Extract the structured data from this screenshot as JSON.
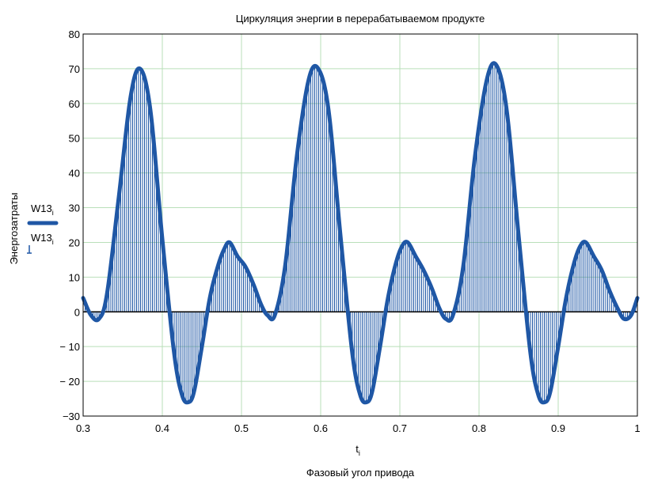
{
  "chart_data": {
    "type": "line",
    "title": "Циркуляция энергии в перерабатываемом продукте",
    "xlabel": "Фазовый угол привода",
    "ylabel": "Энергозатраты",
    "x_var_label": "t",
    "x_var_sub": "i",
    "xlim": [
      0.3,
      1.0
    ],
    "ylim": [
      -30,
      80
    ],
    "x_ticks": [
      0.3,
      0.4,
      0.5,
      0.6,
      0.7,
      0.8,
      0.9,
      1.0
    ],
    "x_tick_labels": [
      "0.3",
      "0.4",
      "0.5",
      "0.6",
      "0.7",
      "0.8",
      "0.9",
      "1"
    ],
    "y_ticks": [
      -30,
      -20,
      -10,
      0,
      10,
      20,
      30,
      40,
      50,
      60,
      70,
      80
    ],
    "y_tick_labels": [
      "−30",
      "− 20",
      "− 10",
      "0",
      "10",
      "20",
      "30",
      "40",
      "50",
      "60",
      "70",
      "80"
    ],
    "grid": true,
    "legend_position": "left",
    "series": [
      {
        "name": "W13",
        "name_sub": "i",
        "style": "line",
        "color": "#1f57a5",
        "x": [
          0.3,
          0.31,
          0.32,
          0.33,
          0.345,
          0.36,
          0.372,
          0.385,
          0.4,
          0.415,
          0.425,
          0.433,
          0.44,
          0.45,
          0.46,
          0.47,
          0.478,
          0.485,
          0.495,
          0.505,
          0.515,
          0.525,
          0.533,
          0.542,
          0.555,
          0.57,
          0.585,
          0.597,
          0.61,
          0.625,
          0.64,
          0.65,
          0.658,
          0.665,
          0.675,
          0.685,
          0.695,
          0.703,
          0.71,
          0.72,
          0.73,
          0.74,
          0.75,
          0.758,
          0.767,
          0.78,
          0.795,
          0.81,
          0.822,
          0.835,
          0.85,
          0.865,
          0.875,
          0.883,
          0.89,
          0.9,
          0.91,
          0.92,
          0.928,
          0.935,
          0.945,
          0.955,
          0.965,
          0.975,
          0.983,
          0.992,
          1.0
        ],
        "y": [
          4,
          -1,
          -2,
          5,
          33,
          62,
          70,
          58,
          21,
          -12,
          -24,
          -26,
          -23,
          -10,
          4,
          13,
          18,
          20,
          16,
          13,
          8,
          2,
          -1,
          -1,
          13,
          45,
          67,
          70,
          58,
          22,
          -12,
          -24,
          -26,
          -23,
          -10,
          4,
          14,
          19,
          20,
          16,
          12,
          7,
          1,
          -2,
          -1,
          13,
          45,
          67,
          71,
          58,
          22,
          -12,
          -24,
          -26,
          -23,
          -10,
          4,
          14,
          19,
          20,
          16,
          12,
          6,
          1,
          -2,
          -1,
          4
        ]
      },
      {
        "name": "W13",
        "name_sub": "i",
        "style": "stem",
        "color": "#1f57a5",
        "step": 0.0025
      }
    ]
  }
}
